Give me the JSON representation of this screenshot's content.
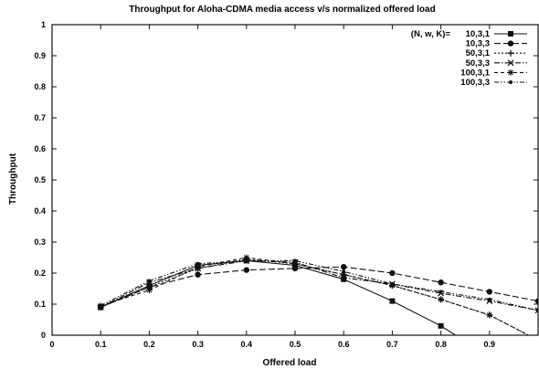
{
  "chart_data": {
    "type": "line",
    "title": "Throughput for Aloha-CDMA media access v/s normalized offered load",
    "xlabel": "Offered load",
    "ylabel": "Throughput",
    "xlim": [
      0,
      1
    ],
    "ylim": [
      0,
      1
    ],
    "x_ticks": [
      "0",
      "0.1",
      "0.2",
      "0.3",
      "0.4",
      "0.5",
      "0.6",
      "0.7",
      "0.8",
      "0.9"
    ],
    "y_ticks": [
      "0",
      "0.1",
      "0.2",
      "0.3",
      "0.4",
      "0.5",
      "0.6",
      "0.7",
      "0.8",
      "0.9",
      "1"
    ],
    "grid": false,
    "legend_position": "top-right",
    "legend_title": "(N, w, K)=",
    "series": [
      {
        "name": "10,3,1",
        "marker": "square",
        "dash": "solid",
        "x": [
          0.1,
          0.2,
          0.3,
          0.4,
          0.5,
          0.6,
          0.7,
          0.8,
          0.83
        ],
        "y": [
          0.09,
          0.16,
          0.225,
          0.24,
          0.225,
          0.18,
          0.11,
          0.03,
          0
        ]
      },
      {
        "name": "10,3,3",
        "marker": "circle",
        "dash": "longdash",
        "x": [
          0.1,
          0.2,
          0.3,
          0.4,
          0.5,
          0.6,
          0.7,
          0.8,
          0.9,
          1.0
        ],
        "y": [
          0.09,
          0.155,
          0.195,
          0.21,
          0.215,
          0.22,
          0.2,
          0.17,
          0.14,
          0.11
        ]
      },
      {
        "name": "50,3,1",
        "marker": "plus",
        "dash": "dotted",
        "x": [
          0.1,
          0.2,
          0.3,
          0.4,
          0.5,
          0.6,
          0.7,
          0.8,
          0.9,
          0.98
        ],
        "y": [
          0.09,
          0.155,
          0.215,
          0.245,
          0.23,
          0.195,
          0.16,
          0.115,
          0.065,
          0
        ]
      },
      {
        "name": "50,3,3",
        "marker": "cross",
        "dash": "dashdot",
        "x": [
          0.1,
          0.2,
          0.3,
          0.4,
          0.5,
          0.6,
          0.7,
          0.8,
          0.9,
          1.0
        ],
        "y": [
          0.09,
          0.17,
          0.215,
          0.24,
          0.235,
          0.185,
          0.165,
          0.135,
          0.11,
          0.08
        ]
      },
      {
        "name": "100,3,1",
        "marker": "star",
        "dash": "dash",
        "x": [
          0.1,
          0.2,
          0.3,
          0.4,
          0.5,
          0.6,
          0.7,
          0.8,
          0.9,
          0.98
        ],
        "y": [
          0.095,
          0.145,
          0.22,
          0.25,
          0.23,
          0.195,
          0.16,
          0.115,
          0.065,
          0
        ]
      },
      {
        "name": "100,3,3",
        "marker": "dot",
        "dash": "dashdotdot",
        "x": [
          0.1,
          0.2,
          0.3,
          0.4,
          0.5,
          0.6,
          0.7,
          0.8,
          0.9,
          1.0
        ],
        "y": [
          0.095,
          0.175,
          0.23,
          0.24,
          0.24,
          0.205,
          0.165,
          0.14,
          0.115,
          0.08
        ]
      }
    ]
  }
}
